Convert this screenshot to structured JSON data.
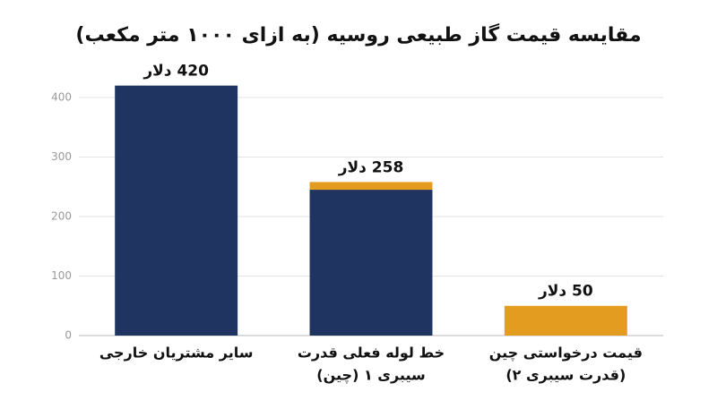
{
  "chart_data": {
    "type": "stacked_bar",
    "title": "مقایسه قیمت گاز طبیعی روسیه (به ازای ۱۰۰۰ متر مکعب)",
    "categories": [
      [
        "سایر مشتریان خارجی"
      ],
      [
        "خط لوله فعلی قدرت",
        "سیبری ۱ (چین)"
      ],
      [
        "قیمت درخواستی چین",
        "(قدرت سیبری ۲)"
      ]
    ],
    "series": [
      {
        "color": "#1f3461",
        "values": [
          420,
          245,
          null
        ]
      },
      {
        "color": "#e39c1f",
        "values": [
          null,
          13,
          50
        ]
      }
    ],
    "value_labels": [
      "420 دلار",
      "258 دلار",
      "50 دلار"
    ],
    "ylim": [
      0,
      430
    ],
    "yticks": [
      0,
      100,
      200,
      300,
      400
    ],
    "grid": true
  }
}
